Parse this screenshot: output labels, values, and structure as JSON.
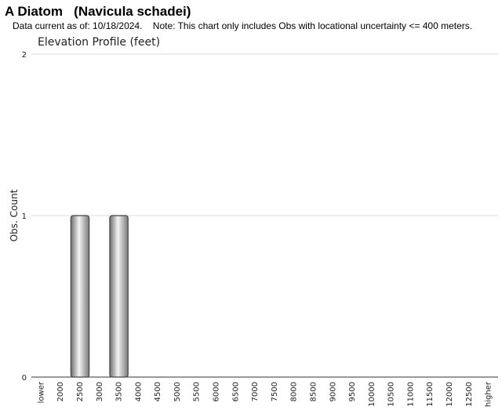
{
  "chart_data": {
    "type": "bar",
    "title": "A Diatom   (Navicula schadei)",
    "subtitle": "Data current as of: 10/18/2024.    Note: This chart only includes Obs with locational uncertainty <= 400 meters.",
    "chart_title": "Elevation Profile (feet)",
    "y_label": "Obs. Count",
    "categories": [
      "lower",
      "2000",
      "2500",
      "3000",
      "3500",
      "4000",
      "4500",
      "5000",
      "5500",
      "6000",
      "6500",
      "7000",
      "7500",
      "8000",
      "8500",
      "9000",
      "9500",
      "10000",
      "10500",
      "11000",
      "11500",
      "12000",
      "12500",
      "higher"
    ],
    "values": [
      0,
      0,
      1,
      0,
      1,
      0,
      0,
      0,
      0,
      0,
      0,
      0,
      0,
      0,
      0,
      0,
      0,
      0,
      0,
      0,
      0,
      0,
      0,
      0
    ],
    "color": "#9a9a9a",
    "ylim": [
      0,
      2
    ],
    "yticks": [
      0,
      1,
      2
    ],
    "grid": true
  }
}
